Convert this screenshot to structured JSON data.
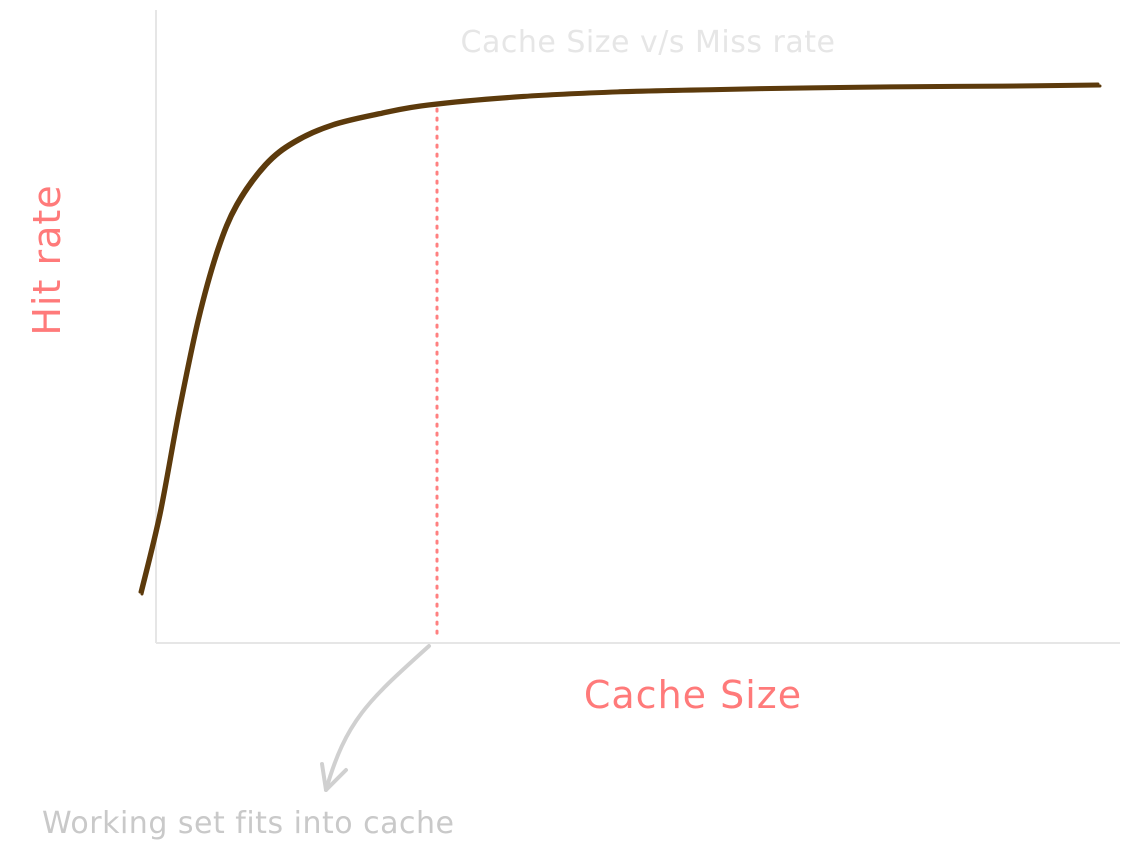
{
  "chart_data": {
    "type": "line",
    "title": "Cache Size v/s Miss rate",
    "xlabel": "Cache Size",
    "ylabel": "Hit rate",
    "grid": false,
    "legend": "none",
    "series": [
      {
        "color": "#5c3a0c",
        "x": [
          0,
          2,
          4,
          6,
          8,
          10,
          13,
          16,
          20,
          25,
          30,
          40,
          50,
          60,
          70,
          80,
          90,
          100
        ],
        "y": [
          0.08,
          0.22,
          0.4,
          0.56,
          0.68,
          0.76,
          0.83,
          0.87,
          0.9,
          0.92,
          0.935,
          0.95,
          0.958,
          0.962,
          0.965,
          0.967,
          0.968,
          0.97
        ]
      }
    ],
    "annotations": [
      {
        "text": "Working set fits into cache",
        "x": 31,
        "color": "#c9c9c9",
        "marker_color": "#ff8080",
        "style": "dotted-vertical-line-with-arrow"
      }
    ],
    "colors": {
      "title": "#e6e6e6",
      "axis_label": "#ff7a7a",
      "axis_line": "#e6e6e6",
      "curve": "#5c3a0c",
      "marker": "#ff8080",
      "annotation": "#c9c9c9",
      "arrow": "#d0d0d0"
    }
  }
}
